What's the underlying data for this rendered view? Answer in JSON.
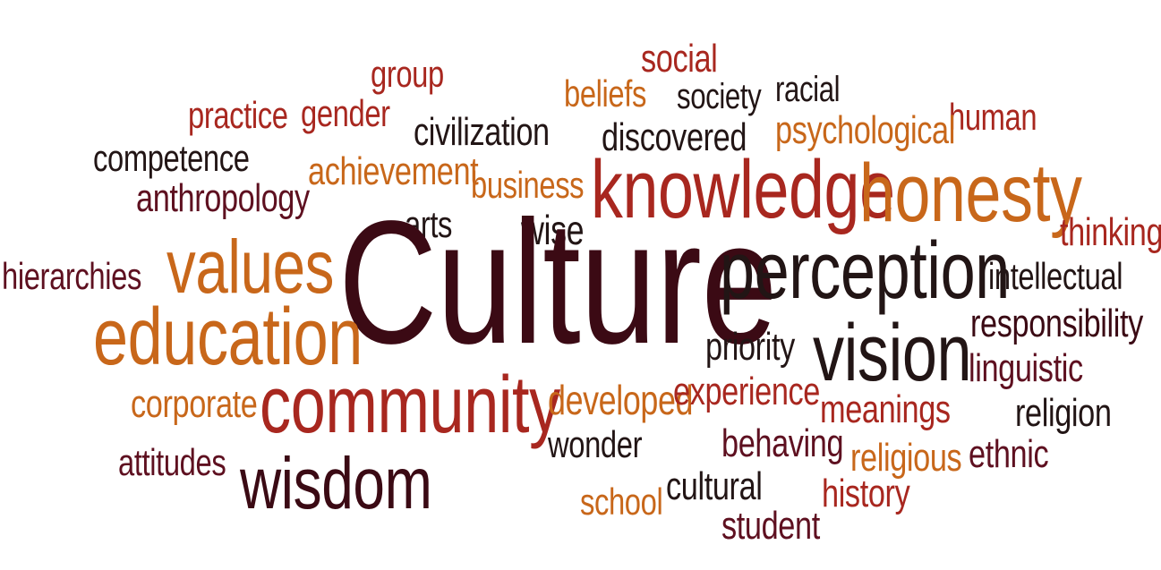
{
  "words": {
    "social": "social",
    "group": "group",
    "beliefs": "beliefs",
    "society": "society",
    "racial": "racial",
    "practice": "practice",
    "gender": "gender",
    "human": "human",
    "civilization": "civilization",
    "discovered": "discovered",
    "psychological": "psychological",
    "competence": "competence",
    "achievement": "achievement",
    "business": "business",
    "knowledge": "knowledge",
    "honesty": "honesty",
    "anthropology": "anthropology",
    "arts": "arts",
    "wise": "wise",
    "thinking": "thinking",
    "values": "values",
    "culture": "Culture",
    "perception": "perception",
    "hierarchies": "hierarchies",
    "intellectual": "intellectual",
    "education": "education",
    "responsibility": "responsibility",
    "priority": "priority",
    "vision": "vision",
    "linguistic": "linguistic",
    "corporate": "corporate",
    "community": "community",
    "developed": "developed",
    "experience": "experience",
    "meanings": "meanings",
    "religion": "religion",
    "wonder": "wonder",
    "behaving": "behaving",
    "attitudes": "attitudes",
    "religious": "religious",
    "ethnic": "ethnic",
    "wisdom": "wisdom",
    "school": "school",
    "cultural": "cultural",
    "history": "history",
    "student": "student"
  },
  "colors": {
    "dark": "#3b0a14",
    "wine": "#5e1020",
    "red": "#a8271f",
    "orange": "#c8671a",
    "gold": "#d48a1e",
    "black": "#221515"
  }
}
